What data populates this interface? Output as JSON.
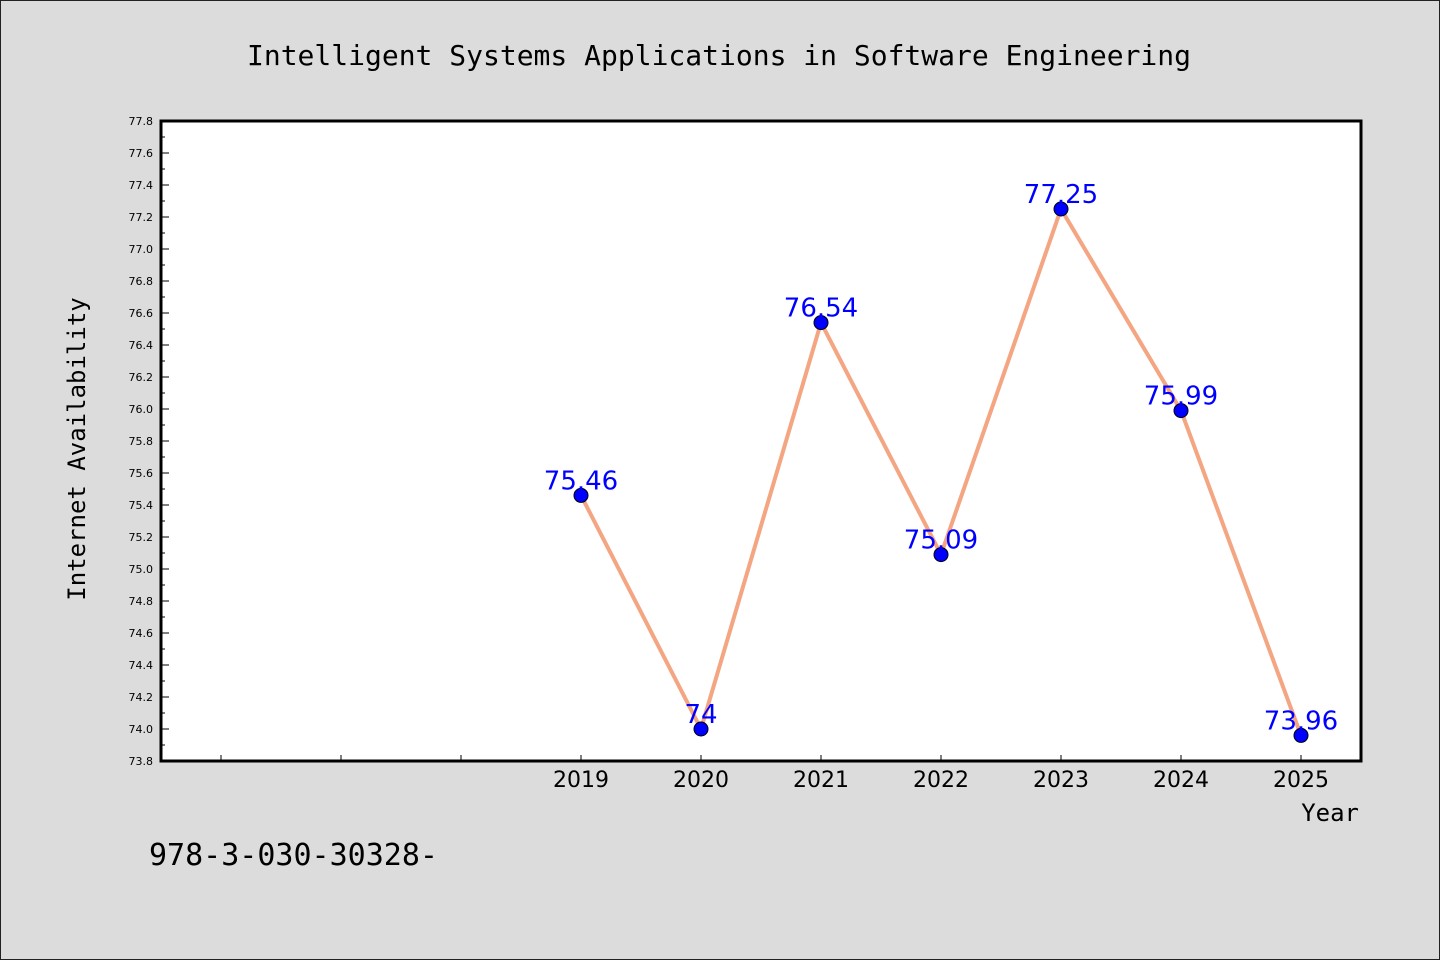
{
  "chart_data": {
    "type": "line",
    "title": "Intelligent Systems Applications in Software Engineering",
    "xlabel": "Year",
    "ylabel": "Internet Availability",
    "x": [
      "2019",
      "2020",
      "2021",
      "2022",
      "2023",
      "2024",
      "2025"
    ],
    "series": [
      {
        "values": [
          75.46,
          74.0,
          76.54,
          75.09,
          77.25,
          75.99,
          73.96
        ],
        "labels": [
          "75.46",
          "74",
          "76.54",
          "75.09",
          "77.25",
          "75.99",
          "73.96"
        ]
      }
    ],
    "ylim": [
      73.8,
      77.8
    ],
    "yticks": [
      "73.8",
      "74.0",
      "74.2",
      "74.4",
      "74.6",
      "74.8",
      "75.0",
      "75.2",
      "75.4",
      "75.6",
      "75.8",
      "76.0",
      "76.2",
      "76.4",
      "76.6",
      "76.8",
      "77.0",
      "77.2",
      "77.4",
      "77.6",
      "77.8"
    ],
    "grid": false,
    "line_color": "#f4a582",
    "marker_color": "#0000ff",
    "label_color": "#0000ff"
  },
  "footer": {
    "text": "978-3-030-30328-"
  }
}
